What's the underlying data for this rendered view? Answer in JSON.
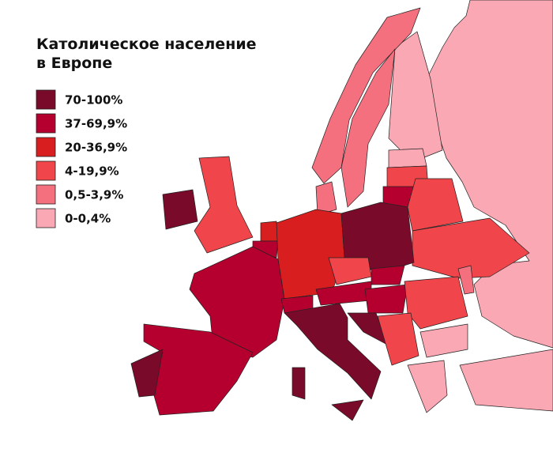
{
  "title": [
    "Католическое население",
    "в Европе"
  ],
  "legend": [
    {
      "label": "70-100%",
      "color": "#7a0a2a"
    },
    {
      "label": "37-69,9%",
      "color": "#b5002f"
    },
    {
      "label": "20-36,9%",
      "color": "#d81e1e"
    },
    {
      "label": "4-19,9%",
      "color": "#f0454a"
    },
    {
      "label": "0,5-3,9%",
      "color": "#f4707f"
    },
    {
      "label": "0-0,4%",
      "color": "#f9a8b4"
    }
  ]
}
